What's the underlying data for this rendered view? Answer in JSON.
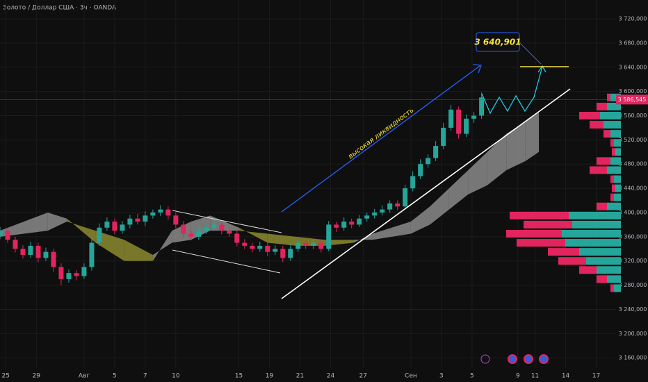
{
  "chart_data": {
    "type": "candlestick",
    "title": "Золото / Доллар США · 3ч · OANDA",
    "annotation": "высокая ликвидность",
    "target": {
      "value": 3640.901,
      "label": "3 640,901"
    },
    "last_price": {
      "value": 3586.545,
      "label": "3 586,545"
    },
    "up_color": "#26a69a",
    "down_color": "#e2255f",
    "x": [
      0,
      4,
      8,
      12,
      16,
      20,
      24,
      28,
      32,
      36,
      40,
      44,
      48,
      52,
      56,
      60,
      64,
      68,
      72,
      76,
      80,
      84,
      88,
      92,
      96,
      100,
      104,
      108,
      112,
      116,
      120,
      124,
      128,
      132,
      136,
      140,
      144,
      148,
      152,
      156,
      160,
      164,
      168,
      172,
      176,
      180,
      184,
      188,
      192,
      196,
      200,
      204,
      208,
      212,
      216,
      220,
      224,
      228,
      232,
      236,
      240,
      244,
      248,
      252
    ],
    "open": [
      3362,
      3370,
      3355,
      3340,
      3330,
      3345,
      3325,
      3335,
      3310,
      3290,
      3300,
      3295,
      3310,
      3350,
      3375,
      3385,
      3370,
      3380,
      3390,
      3385,
      3395,
      3400,
      3405,
      3395,
      3380,
      3365,
      3360,
      3370,
      3375,
      3380,
      3370,
      3365,
      3350,
      3345,
      3340,
      3345,
      3335,
      3340,
      3325,
      3340,
      3350,
      3345,
      3350,
      3340,
      3380,
      3375,
      3385,
      3380,
      3390,
      3395,
      3400,
      3405,
      3415,
      3410,
      3440,
      3460,
      3480,
      3490,
      3510,
      3540,
      3570,
      3530,
      3555,
      3560
    ],
    "high": [
      3376,
      3375,
      3360,
      3346,
      3352,
      3350,
      3342,
      3340,
      3316,
      3306,
      3305,
      3316,
      3358,
      3382,
      3392,
      3390,
      3386,
      3396,
      3398,
      3402,
      3405,
      3412,
      3410,
      3400,
      3386,
      3372,
      3376,
      3382,
      3388,
      3385,
      3376,
      3370,
      3356,
      3350,
      3352,
      3350,
      3346,
      3345,
      3348,
      3356,
      3355,
      3356,
      3355,
      3386,
      3385,
      3392,
      3390,
      3396,
      3400,
      3406,
      3412,
      3420,
      3420,
      3446,
      3468,
      3488,
      3496,
      3518,
      3548,
      3578,
      3575,
      3562,
      3566,
      3598
    ],
    "low": [
      3356,
      3350,
      3334,
      3324,
      3325,
      3318,
      3320,
      3302,
      3280,
      3284,
      3288,
      3290,
      3304,
      3345,
      3370,
      3364,
      3365,
      3374,
      3380,
      3378,
      3390,
      3394,
      3388,
      3374,
      3358,
      3354,
      3355,
      3365,
      3370,
      3364,
      3360,
      3344,
      3340,
      3334,
      3335,
      3328,
      3330,
      3318,
      3320,
      3335,
      3340,
      3340,
      3334,
      3336,
      3368,
      3370,
      3374,
      3376,
      3385,
      3390,
      3395,
      3400,
      3404,
      3405,
      3435,
      3455,
      3474,
      3485,
      3505,
      3535,
      3522,
      3525,
      3548,
      3555
    ],
    "close": [
      3370,
      3355,
      3340,
      3330,
      3345,
      3325,
      3335,
      3310,
      3290,
      3300,
      3295,
      3310,
      3350,
      3375,
      3385,
      3370,
      3380,
      3390,
      3385,
      3395,
      3400,
      3405,
      3395,
      3380,
      3365,
      3360,
      3370,
      3375,
      3380,
      3370,
      3365,
      3350,
      3345,
      3340,
      3345,
      3335,
      3340,
      3325,
      3340,
      3350,
      3345,
      3350,
      3340,
      3380,
      3375,
      3385,
      3380,
      3390,
      3395,
      3400,
      3405,
      3415,
      3410,
      3440,
      3460,
      3480,
      3490,
      3510,
      3540,
      3570,
      3530,
      3555,
      3560,
      3590
    ],
    "cloud": {
      "up_color": "#8a8a8a",
      "down_color": "#8c8a2e",
      "x": [
        0,
        25,
        35,
        50,
        65,
        80,
        90,
        100,
        110,
        125,
        140,
        155,
        170,
        185,
        195,
        205,
        215,
        225,
        235,
        245,
        255,
        265,
        275,
        282
      ],
      "span_a": [
        3370,
        3400,
        3390,
        3350,
        3320,
        3320,
        3370,
        3385,
        3395,
        3375,
        3350,
        3345,
        3345,
        3350,
        3365,
        3375,
        3385,
        3410,
        3440,
        3470,
        3500,
        3530,
        3550,
        3565
      ],
      "span_b": [
        3360,
        3370,
        3385,
        3370,
        3355,
        3330,
        3350,
        3355,
        3370,
        3370,
        3365,
        3360,
        3355,
        3355,
        3355,
        3360,
        3365,
        3380,
        3405,
        3430,
        3445,
        3470,
        3485,
        3500
      ]
    },
    "volume_profile": {
      "prices": [
        3275,
        3290,
        3305,
        3320,
        3335,
        3350,
        3365,
        3380,
        3395,
        3410,
        3425,
        3440,
        3455,
        3470,
        3485,
        3500,
        3515,
        3530,
        3545,
        3560,
        3575,
        3590
      ],
      "up": [
        10,
        20,
        35,
        50,
        60,
        80,
        85,
        70,
        75,
        20,
        10,
        8,
        10,
        20,
        15,
        8,
        10,
        15,
        25,
        30,
        20,
        15
      ],
      "down": [
        5,
        15,
        25,
        40,
        45,
        70,
        80,
        70,
        85,
        15,
        5,
        5,
        5,
        25,
        20,
        5,
        5,
        10,
        20,
        30,
        15,
        5
      ]
    },
    "xlim": [
      0,
      322
    ],
    "xticks": [
      {
        "value": 3,
        "label": "25"
      },
      {
        "value": 19,
        "label": "29"
      },
      {
        "value": 44,
        "label": "Авг"
      },
      {
        "value": 60,
        "label": "5"
      },
      {
        "value": 76,
        "label": "7"
      },
      {
        "value": 92,
        "label": "10"
      },
      {
        "value": 125,
        "label": "15"
      },
      {
        "value": 141,
        "label": "19"
      },
      {
        "value": 157,
        "label": "21"
      },
      {
        "value": 173,
        "label": "24"
      },
      {
        "value": 190,
        "label": "27"
      },
      {
        "value": 215,
        "label": "Сен"
      },
      {
        "value": 231,
        "label": "3"
      },
      {
        "value": 247,
        "label": "5"
      },
      {
        "value": 271,
        "label": "9"
      },
      {
        "value": 280,
        "label": "11"
      },
      {
        "value": 296,
        "label": "14"
      },
      {
        "value": 312,
        "label": "17"
      }
    ],
    "ylim": [
      3143,
      3751
    ],
    "yticks": [
      {
        "value": 3160,
        "label": "3 160,000"
      },
      {
        "value": 3200,
        "label": "3 200,000"
      },
      {
        "value": 3240,
        "label": "3 240,000"
      },
      {
        "value": 3280,
        "label": "3 280,000"
      },
      {
        "value": 3320,
        "label": "3 320,000"
      },
      {
        "value": 3360,
        "label": "3 360,000"
      },
      {
        "value": 3400,
        "label": "3 400,000"
      },
      {
        "value": 3440,
        "label": "3 440,000"
      },
      {
        "value": 3480,
        "label": "3 480,000"
      },
      {
        "value": 3520,
        "label": "3 520,000"
      },
      {
        "value": 3560,
        "label": "3 560,000"
      },
      {
        "value": 3600,
        "label": "3 600,000"
      },
      {
        "value": 3640,
        "label": "3 640,000"
      },
      {
        "value": 3680,
        "label": "3 680,000"
      },
      {
        "value": 3720,
        "label": "3 720,000"
      }
    ],
    "grid": true
  }
}
